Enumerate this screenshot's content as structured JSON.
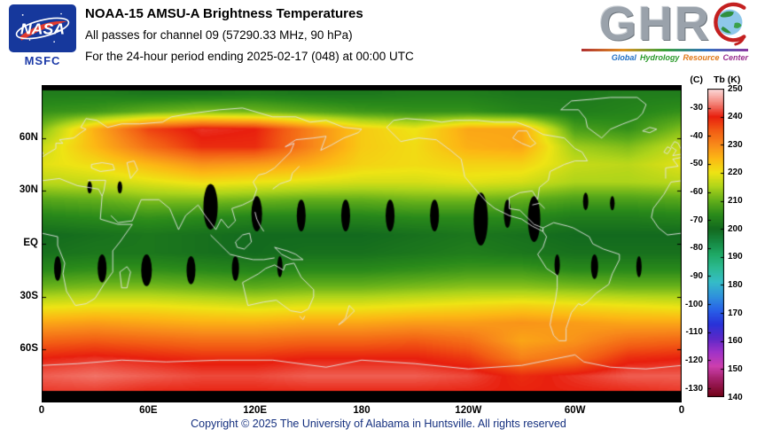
{
  "header": {
    "nasa": {
      "agency": "NASA",
      "center_label": "MSFC"
    },
    "title": "NOAA-15 AMSU-A Brightness Temperatures",
    "subtitle1": "All passes for channel 09 (57290.33 MHz, 90 hPa)",
    "subtitle2": "For the 24-hour period ending 2025-02-17 (048) at 00:00 UTC",
    "ghrc": {
      "letters": "GHR",
      "tagline_words": [
        "Global",
        "Hydrology",
        "Resource",
        "Center"
      ],
      "word_colors": [
        "#1f6fc4",
        "#2a9a2a",
        "#e07818",
        "#9a3090"
      ]
    }
  },
  "chart_data": {
    "type": "heatmap",
    "title": "NOAA-15 AMSU-A Brightness Temperatures, channel 09",
    "x_axis": {
      "ticks": [
        "0",
        "60E",
        "120E",
        "180",
        "120W",
        "60W",
        "0"
      ],
      "tick_lons": [
        0,
        60,
        120,
        180,
        240,
        300,
        360
      ],
      "range": [
        0,
        360
      ]
    },
    "y_axis": {
      "ticks": [
        "60N",
        "30N",
        "EQ",
        "30S",
        "60S"
      ],
      "tick_lats": [
        60,
        30,
        0,
        -30,
        -60
      ],
      "range": [
        -90,
        90
      ]
    },
    "colorbar": {
      "c_label": "(C)",
      "k_label": "Tb (K)",
      "k_ticks": [
        250,
        240,
        230,
        220,
        210,
        200,
        190,
        180,
        170,
        160,
        150,
        140
      ],
      "c_ticks": [
        -30,
        -40,
        -50,
        -60,
        -70,
        -80,
        -90,
        -100,
        -110,
        -120,
        -130
      ],
      "k_range": [
        140,
        250
      ]
    },
    "colormap": [
      [
        140,
        "#700014"
      ],
      [
        146,
        "#a01e62"
      ],
      [
        151,
        "#cc3fae"
      ],
      [
        156,
        "#a032c8"
      ],
      [
        161,
        "#5a28c8"
      ],
      [
        166,
        "#2832d8"
      ],
      [
        171,
        "#2861e8"
      ],
      [
        176,
        "#2f93dc"
      ],
      [
        181,
        "#35bcc8"
      ],
      [
        186,
        "#2cba92"
      ],
      [
        191,
        "#1ea864"
      ],
      [
        195,
        "#178a44"
      ],
      [
        200,
        "#136a1e"
      ],
      [
        205,
        "#2a8a1a"
      ],
      [
        210,
        "#62ae1a"
      ],
      [
        215,
        "#aed41a"
      ],
      [
        220,
        "#eee414"
      ],
      [
        225,
        "#fcb814"
      ],
      [
        230,
        "#f88a1a"
      ],
      [
        235,
        "#f25c14"
      ],
      [
        240,
        "#e8200e"
      ],
      [
        245,
        "#f4887e"
      ],
      [
        250,
        "#fcdcdc"
      ]
    ],
    "no_data_color": "#000000",
    "polar_gaps": {
      "north_above_lat": 87.2,
      "south_below_lat": -83.5
    },
    "grid": {
      "lons": [
        0,
        30,
        60,
        90,
        120,
        150,
        180,
        210,
        240,
        270,
        300,
        330,
        360
      ],
      "lats": [
        85,
        75,
        65,
        55,
        45,
        35,
        25,
        15,
        5,
        -5,
        -15,
        -25,
        -35,
        -45,
        -55,
        -65,
        -75,
        -85
      ],
      "values_k": [
        [
          203,
          203,
          202,
          202,
          203,
          202,
          202,
          203,
          203,
          202,
          202,
          203,
          203
        ],
        [
          206,
          207,
          210,
          212,
          211,
          209,
          207,
          206,
          206,
          204,
          203,
          204,
          206
        ],
        [
          212,
          226,
          237,
          241,
          240,
          231,
          223,
          220,
          227,
          227,
          208,
          206,
          212
        ],
        [
          217,
          225,
          233,
          239,
          239,
          231,
          223,
          221,
          226,
          227,
          214,
          212,
          217
        ],
        [
          219,
          221,
          225,
          229,
          228,
          226,
          222,
          221,
          222,
          222,
          217,
          216,
          219
        ],
        [
          216,
          217,
          219,
          221,
          220,
          219,
          218,
          218,
          219,
          218,
          215,
          215,
          216
        ],
        [
          209,
          210,
          212,
          212,
          211,
          210,
          210,
          211,
          211,
          210,
          208,
          208,
          209
        ],
        [
          204,
          205,
          206,
          205,
          204,
          204,
          204,
          205,
          205,
          205,
          203,
          203,
          204
        ],
        [
          200,
          201,
          202,
          201,
          200,
          200,
          200,
          201,
          202,
          201,
          200,
          200,
          200
        ],
        [
          201,
          202,
          202,
          201,
          200,
          201,
          201,
          202,
          203,
          202,
          201,
          201,
          201
        ],
        [
          205,
          206,
          206,
          205,
          204,
          205,
          205,
          206,
          207,
          207,
          205,
          205,
          205
        ],
        [
          211,
          212,
          212,
          211,
          210,
          211,
          211,
          212,
          213,
          213,
          212,
          211,
          211
        ],
        [
          219,
          220,
          220,
          219,
          218,
          219,
          219,
          220,
          221,
          222,
          221,
          220,
          219
        ],
        [
          227,
          228,
          227,
          226,
          226,
          227,
          227,
          228,
          228,
          229,
          228,
          227,
          227
        ],
        [
          234,
          235,
          234,
          233,
          233,
          234,
          234,
          235,
          233,
          227,
          229,
          233,
          234
        ],
        [
          240,
          241,
          240,
          239,
          239,
          240,
          240,
          240,
          238,
          231,
          233,
          239,
          240
        ],
        [
          243,
          244,
          243,
          242,
          242,
          243,
          243,
          243,
          242,
          239,
          241,
          243,
          243
        ],
        [
          241,
          241,
          240,
          240,
          240,
          240,
          240,
          240,
          240,
          240,
          240,
          240,
          241
        ]
      ]
    },
    "swath_gaps": [
      {
        "lon": 95,
        "lat": 21,
        "w": 4,
        "h": 13
      },
      {
        "lon": 121,
        "lat": 17,
        "w": 3,
        "h": 10
      },
      {
        "lon": 146,
        "lat": 16,
        "w": 2.5,
        "h": 9
      },
      {
        "lon": 171,
        "lat": 16,
        "w": 2.5,
        "h": 9
      },
      {
        "lon": 196,
        "lat": 16,
        "w": 2.5,
        "h": 9
      },
      {
        "lon": 221,
        "lat": 16,
        "w": 2.5,
        "h": 9
      },
      {
        "lon": 247,
        "lat": 14,
        "w": 4,
        "h": 15
      },
      {
        "lon": 262,
        "lat": 17,
        "w": 2,
        "h": 8
      },
      {
        "lon": 277,
        "lat": 14,
        "w": 3.5,
        "h": 13
      },
      {
        "lon": 27,
        "lat": 32,
        "w": 1.3,
        "h": 3.5
      },
      {
        "lon": 44,
        "lat": 32,
        "w": 1.3,
        "h": 3.5
      },
      {
        "lon": 306,
        "lat": 24,
        "w": 1.5,
        "h": 5
      },
      {
        "lon": 321,
        "lat": 23,
        "w": 1.3,
        "h": 4
      },
      {
        "lon": 9,
        "lat": -14,
        "w": 2,
        "h": 7
      },
      {
        "lon": 34,
        "lat": -14,
        "w": 2.5,
        "h": 8
      },
      {
        "lon": 59,
        "lat": -15,
        "w": 3,
        "h": 9
      },
      {
        "lon": 84,
        "lat": -15,
        "w": 2.5,
        "h": 8
      },
      {
        "lon": 109,
        "lat": -14,
        "w": 2,
        "h": 7
      },
      {
        "lon": 134,
        "lat": -13,
        "w": 1.5,
        "h": 6
      },
      {
        "lon": 290,
        "lat": -12,
        "w": 1.5,
        "h": 6
      },
      {
        "lon": 311,
        "lat": -13,
        "w": 2,
        "h": 7
      },
      {
        "lon": 336,
        "lat": -13,
        "w": 1.5,
        "h": 6
      }
    ]
  },
  "footer": {
    "copyright": "Copyright © 2025 The University of Alabama in Huntsville. All rights reserved"
  }
}
